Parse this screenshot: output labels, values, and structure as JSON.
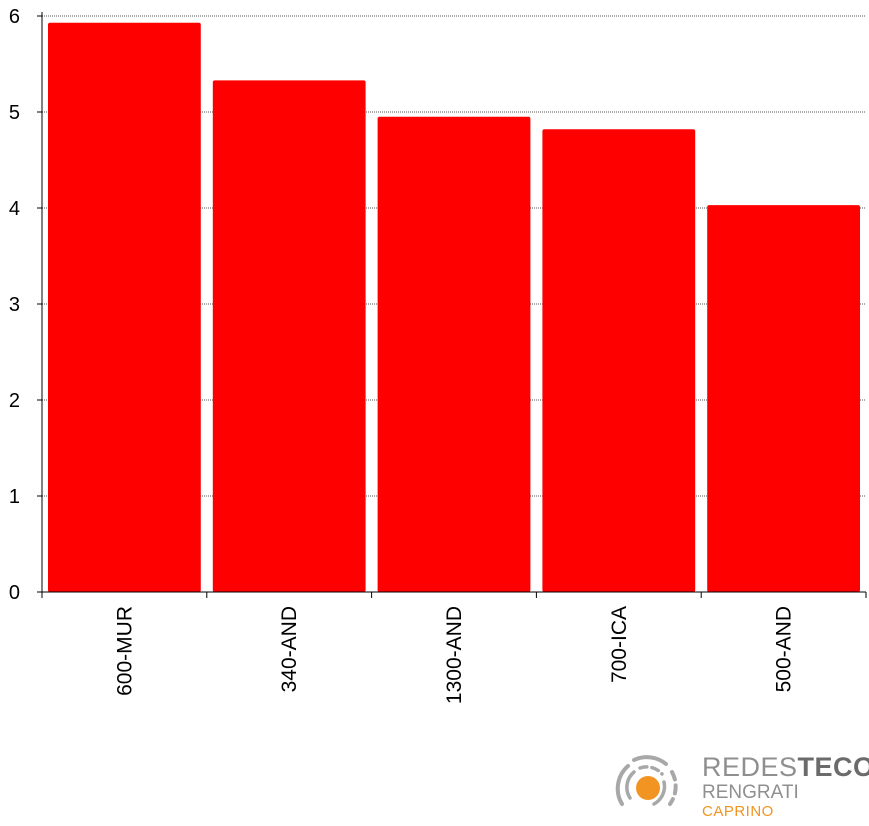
{
  "chart_data": {
    "type": "bar",
    "categories": [
      "600-MUR",
      "340-AND",
      "1300-AND",
      "700-ICA",
      "500-AND"
    ],
    "values": [
      5.93,
      5.33,
      4.95,
      4.82,
      4.03
    ],
    "title": "",
    "xlabel": "",
    "ylabel": "",
    "ylim": [
      0,
      6
    ],
    "yticks": [
      "0",
      "1",
      "2",
      "3",
      "4",
      "5",
      "6"
    ],
    "grid": true,
    "grid_style": "dotted",
    "legend": "none"
  },
  "colors": {
    "bar": "#ff0000",
    "axis": "#000000",
    "grid": "#555555",
    "logo_gray": "#8f8f8f",
    "logo_orange": "#f29422"
  },
  "logo": {
    "icon": "redesteco-logo-icon",
    "line1_light": "REDES",
    "line1_bold": "TECO",
    "line2": "RENGRATI",
    "line3": "CAPRINO"
  }
}
